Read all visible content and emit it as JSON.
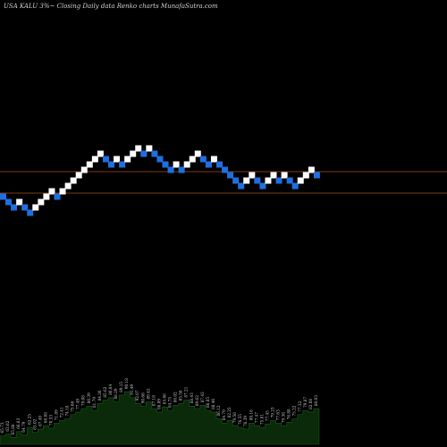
{
  "header": {
    "title": "USA KALU 3%~  Closing Daily data  Renko  charts MunafaSutra.com"
  },
  "colors": {
    "background": "#000000",
    "up_brick": "#ffffff",
    "down_brick": "#1f6fe0",
    "reference_line": "#a0521e",
    "volume_fill": "#0a2a0a",
    "volume_stroke": "#1a5a1a"
  },
  "chart_data": {
    "type": "renko",
    "reference_lines": [
      192,
      216
    ],
    "bricks": [
      {
        "dir": "down",
        "level": 0
      },
      {
        "dir": "down",
        "level": -1
      },
      {
        "dir": "down",
        "level": -2
      },
      {
        "dir": "up",
        "level": -1
      },
      {
        "dir": "down",
        "level": -2
      },
      {
        "dir": "down",
        "level": -3
      },
      {
        "dir": "up",
        "level": -2
      },
      {
        "dir": "up",
        "level": -1
      },
      {
        "dir": "up",
        "level": 0
      },
      {
        "dir": "up",
        "level": 1
      },
      {
        "dir": "down",
        "level": 0
      },
      {
        "dir": "up",
        "level": 1
      },
      {
        "dir": "up",
        "level": 2
      },
      {
        "dir": "up",
        "level": 3
      },
      {
        "dir": "up",
        "level": 4
      },
      {
        "dir": "up",
        "level": 5
      },
      {
        "dir": "up",
        "level": 6
      },
      {
        "dir": "up",
        "level": 7
      },
      {
        "dir": "up",
        "level": 8
      },
      {
        "dir": "down",
        "level": 7
      },
      {
        "dir": "down",
        "level": 6
      },
      {
        "dir": "up",
        "level": 7
      },
      {
        "dir": "down",
        "level": 6
      },
      {
        "dir": "up",
        "level": 7
      },
      {
        "dir": "up",
        "level": 8
      },
      {
        "dir": "up",
        "level": 9
      },
      {
        "dir": "down",
        "level": 8
      },
      {
        "dir": "up",
        "level": 9
      },
      {
        "dir": "down",
        "level": 8
      },
      {
        "dir": "down",
        "level": 7
      },
      {
        "dir": "down",
        "level": 6
      },
      {
        "dir": "down",
        "level": 5
      },
      {
        "dir": "up",
        "level": 6
      },
      {
        "dir": "down",
        "level": 5
      },
      {
        "dir": "up",
        "level": 6
      },
      {
        "dir": "up",
        "level": 7
      },
      {
        "dir": "up",
        "level": 8
      },
      {
        "dir": "down",
        "level": 7
      },
      {
        "dir": "down",
        "level": 6
      },
      {
        "dir": "up",
        "level": 7
      },
      {
        "dir": "down",
        "level": 6
      },
      {
        "dir": "down",
        "level": 5
      },
      {
        "dir": "down",
        "level": 4
      },
      {
        "dir": "down",
        "level": 3
      },
      {
        "dir": "down",
        "level": 2
      },
      {
        "dir": "up",
        "level": 3
      },
      {
        "dir": "up",
        "level": 4
      },
      {
        "dir": "down",
        "level": 3
      },
      {
        "dir": "down",
        "level": 2
      },
      {
        "dir": "up",
        "level": 3
      },
      {
        "dir": "up",
        "level": 4
      },
      {
        "dir": "down",
        "level": 3
      },
      {
        "dir": "up",
        "level": 4
      },
      {
        "dir": "down",
        "level": 3
      },
      {
        "dir": "down",
        "level": 2
      },
      {
        "dir": "up",
        "level": 3
      },
      {
        "dir": "up",
        "level": 4
      },
      {
        "dir": "up",
        "level": 5
      },
      {
        "dir": "down",
        "level": 4
      }
    ],
    "volume": [
      10,
      12,
      8,
      15,
      11,
      20,
      14,
      18,
      22,
      19,
      25,
      28,
      30,
      35,
      38,
      42,
      45,
      40,
      48,
      52,
      55,
      50,
      58,
      62,
      55,
      48,
      45,
      50,
      42,
      38,
      44,
      40,
      46,
      48,
      52,
      45,
      42,
      46,
      40,
      38,
      30,
      25,
      28,
      22,
      20,
      18,
      25,
      22,
      20,
      24,
      28,
      25,
      22,
      26,
      30,
      35,
      40,
      38,
      42
    ],
    "value_labels": [
      "65.73",
      "63.62",
      "65.88",
      "66.83",
      "64.79",
      "62.25",
      "65.02",
      "67.49",
      "68.88",
      "70.53",
      "71.89",
      "72.41",
      "74.18",
      "75.66",
      "77.49",
      "79.08",
      "80.39",
      "81.79",
      "84.26",
      "85.62",
      "86.84",
      "88.29",
      "89.15",
      "90.18",
      "91.49",
      "92.07",
      "90.66",
      "89.45",
      "87.18",
      "86.09",
      "85.66",
      "84.75",
      "86.02",
      "85.58",
      "87.21",
      "88.43",
      "89.62",
      "87.43",
      "86.85",
      "88.46",
      "86.12",
      "84.79",
      "82.25",
      "79.56",
      "76.55",
      "78.39",
      "80.16",
      "77.47",
      "75.81",
      "77.45",
      "79.23",
      "77.63",
      "79.36",
      "76.88",
      "75.22",
      "77.32",
      "79.87",
      "82.08",
      "80.03"
    ]
  }
}
